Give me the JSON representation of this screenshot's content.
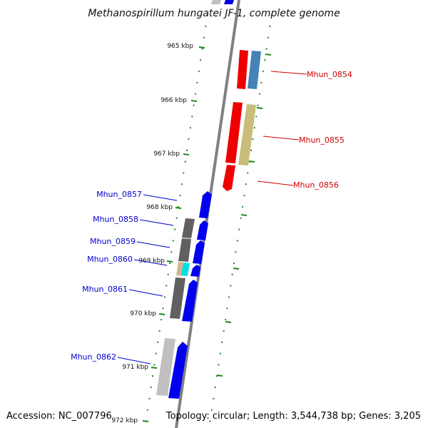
{
  "title": "Methanospirillum hungatei JF-1, complete genome",
  "footer": {
    "accession": "Accession: NC_007796",
    "topology": "Topology: circular; Length: 3,544,738 bp; Genes: 3,205"
  },
  "ticks": [
    "965 kbp",
    "966 kbp",
    "967 kbp",
    "968 kbp",
    "969 kbp",
    "970 kbp",
    "971 kbp",
    "972 kbp"
  ],
  "gene_labels": {
    "mhun_0854": "Mhun_0854",
    "mhun_0855": "Mhun_0855",
    "mhun_0856": "Mhun_0856",
    "mhun_0857": "Mhun_0857",
    "mhun_0858": "Mhun_0858",
    "mhun_0859": "Mhun_0859",
    "mhun_0860": "Mhun_0860",
    "mhun_0861": "Mhun_0861",
    "mhun_0862": "Mhun_0862"
  },
  "colors": {
    "backbone": "#808080",
    "tick": "#1e8a1e",
    "forward_strand_label": "#0000cc",
    "reverse_strand_label": "#cc0000",
    "red": "#ee0000",
    "steel_blue": "#4682b4",
    "khaki": "#c8bd7a",
    "blue": "#0000ee",
    "dark_gray": "#606060",
    "light_gray": "#c0c0c0",
    "tan": "#d2b48c",
    "cyan": "#00e0e0"
  }
}
